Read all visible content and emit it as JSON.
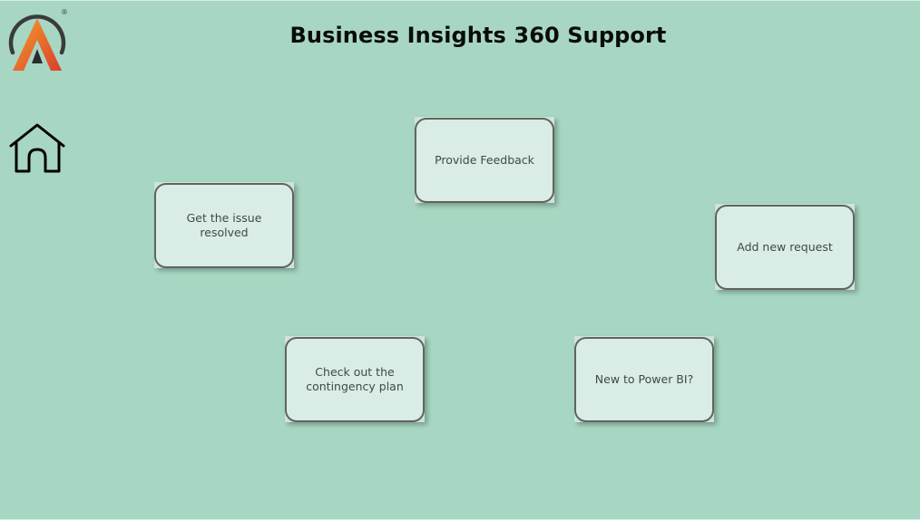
{
  "header": {
    "title": "Business Insights 360 Support"
  },
  "logo": {
    "icon": "brand-a-logo-icon",
    "registered_mark": "®",
    "colors": {
      "gradient_start": "#f59e2e",
      "gradient_end": "#d9402b",
      "ring": "#3b3b3b"
    }
  },
  "nav": {
    "home_icon": "home-icon"
  },
  "cards": {
    "provide_feedback": "Provide Feedback",
    "get_issue_resolved": "Get the issue resolved",
    "add_new_request": "Add new request",
    "contingency_plan": "Check out the\ncontingency plan",
    "new_to_power_bi": "New to Power BI?"
  },
  "colors": {
    "background": "#a7d7c2",
    "card_fill": "#d9ece6",
    "card_border": "#5f6460",
    "card_text": "#3f4a45"
  }
}
